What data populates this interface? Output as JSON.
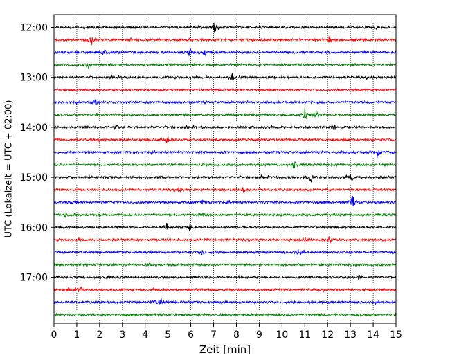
{
  "chart_data": {
    "type": "line",
    "title": "",
    "xlabel": "Zeit  [min]",
    "ylabel": "UTC (Lokalzeit = UTC + 02:00)",
    "xlim": [
      0,
      15
    ],
    "x_ticks": [
      0,
      1,
      2,
      3,
      4,
      5,
      6,
      7,
      8,
      9,
      10,
      11,
      12,
      13,
      14,
      15
    ],
    "y_tick_labels": [
      "12:00",
      "13:00",
      "14:00",
      "15:00",
      "16:00",
      "17:00"
    ],
    "y_tick_rows": [
      0,
      4,
      8,
      12,
      16,
      20
    ],
    "grid": "vertical dotted",
    "row_colors": [
      "#000000",
      "#ff0000",
      "#0000ff",
      "#008000"
    ],
    "rows": [
      {
        "start": "12:00",
        "color": "#000000",
        "events": [
          {
            "x": 7.05,
            "amp": 9
          }
        ]
      },
      {
        "start": "12:15",
        "color": "#ff0000",
        "events": [
          {
            "x": 1.65,
            "amp": 8
          },
          {
            "x": 12.1,
            "amp": 7
          }
        ]
      },
      {
        "start": "12:30",
        "color": "#0000ff",
        "events": [
          {
            "x": 2.2,
            "amp": 5
          },
          {
            "x": 5.95,
            "amp": 7
          },
          {
            "x": 6.6,
            "amp": 7
          }
        ]
      },
      {
        "start": "12:45",
        "color": "#008000",
        "events": [
          {
            "x": 1.5,
            "amp": 5
          }
        ]
      },
      {
        "start": "13:00",
        "color": "#000000",
        "events": [
          {
            "x": 7.8,
            "amp": 8
          }
        ]
      },
      {
        "start": "13:15",
        "color": "#ff0000",
        "events": []
      },
      {
        "start": "13:30",
        "color": "#0000ff",
        "events": [
          {
            "x": 1.8,
            "amp": 9
          }
        ]
      },
      {
        "start": "13:45",
        "color": "#008000",
        "events": [
          {
            "x": 11.0,
            "amp": 14
          },
          {
            "x": 11.5,
            "amp": 7
          }
        ]
      },
      {
        "start": "14:00",
        "color": "#000000",
        "events": [
          {
            "x": 2.7,
            "amp": 6
          },
          {
            "x": 12.3,
            "amp": 5
          }
        ]
      },
      {
        "start": "14:15",
        "color": "#ff0000",
        "events": [
          {
            "x": 4.95,
            "amp": 6
          }
        ]
      },
      {
        "start": "14:30",
        "color": "#0000ff",
        "events": [
          {
            "x": 14.2,
            "amp": 11
          }
        ]
      },
      {
        "start": "14:45",
        "color": "#008000",
        "events": [
          {
            "x": 10.55,
            "amp": 8
          }
        ]
      },
      {
        "start": "15:00",
        "color": "#000000",
        "events": [
          {
            "x": 11.25,
            "amp": 9
          },
          {
            "x": 13.05,
            "amp": 5
          }
        ]
      },
      {
        "start": "15:15",
        "color": "#ff0000",
        "events": [
          {
            "x": 5.5,
            "amp": 5
          },
          {
            "x": 8.3,
            "amp": 4
          }
        ]
      },
      {
        "start": "15:30",
        "color": "#0000ff",
        "events": [
          {
            "x": 13.1,
            "amp": 11
          },
          {
            "x": 6.5,
            "amp": 4
          }
        ]
      },
      {
        "start": "15:45",
        "color": "#008000",
        "events": [
          {
            "x": 0.5,
            "amp": 7
          },
          {
            "x": 6.5,
            "amp": 5
          }
        ]
      },
      {
        "start": "16:00",
        "color": "#000000",
        "events": [
          {
            "x": 4.95,
            "amp": 6
          },
          {
            "x": 5.95,
            "amp": 6
          }
        ]
      },
      {
        "start": "16:15",
        "color": "#ff0000",
        "events": [
          {
            "x": 12.1,
            "amp": 8
          },
          {
            "x": 11.0,
            "amp": 4
          }
        ]
      },
      {
        "start": "16:30",
        "color": "#0000ff",
        "events": [
          {
            "x": 6.5,
            "amp": 4
          },
          {
            "x": 10.7,
            "amp": 4
          }
        ]
      },
      {
        "start": "16:45",
        "color": "#008000",
        "events": []
      },
      {
        "start": "17:00",
        "color": "#000000",
        "events": [
          {
            "x": 2.3,
            "amp": 4
          },
          {
            "x": 13.4,
            "amp": 5
          }
        ]
      },
      {
        "start": "17:15",
        "color": "#ff0000",
        "events": [
          {
            "x": 1.15,
            "amp": 6
          }
        ]
      },
      {
        "start": "17:30",
        "color": "#0000ff",
        "events": [
          {
            "x": 4.7,
            "amp": 6
          },
          {
            "x": 4.4,
            "amp": 4
          }
        ]
      },
      {
        "start": "17:45",
        "color": "#008000",
        "events": []
      }
    ]
  }
}
